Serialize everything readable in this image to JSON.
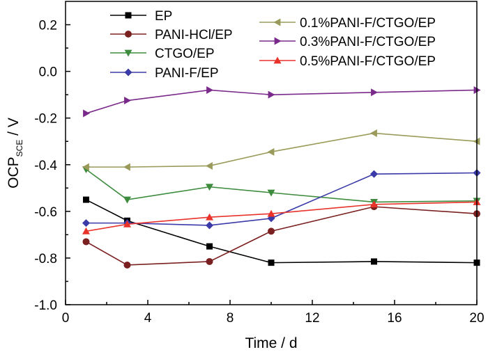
{
  "chart_data": {
    "type": "line",
    "xlabel": "Time / d",
    "ylabel_main": "OCP",
    "ylabel_sub": "SCE",
    "ylabel_unit": " / V",
    "xlim": [
      0,
      20
    ],
    "ylim": [
      -1.0,
      0.3
    ],
    "xticks": [
      0,
      4,
      8,
      12,
      16,
      20
    ],
    "yticks": [
      -1.0,
      -0.8,
      -0.6,
      -0.4,
      -0.2,
      0.0,
      0.2
    ],
    "ytick_labels": [
      "-1.0",
      "-0.8",
      "-0.6",
      "-0.4",
      "-0.2",
      "0.0",
      "0.2"
    ],
    "x": [
      1,
      3,
      7,
      10,
      15,
      20
    ],
    "grid": false,
    "legend_placement": "top, two columns",
    "series": [
      {
        "name": "EP",
        "color": "#000000",
        "marker": "square",
        "values": [
          -0.55,
          -0.64,
          -0.75,
          -0.82,
          -0.815,
          -0.82
        ]
      },
      {
        "name": "PANI-HCl/EP",
        "color": "#7b2020",
        "marker": "circle",
        "values": [
          -0.73,
          -0.83,
          -0.815,
          -0.685,
          -0.58,
          -0.61
        ]
      },
      {
        "name": "CTGO/EP",
        "color": "#3d8b3d",
        "marker": "triangle-down",
        "values": [
          -0.42,
          -0.55,
          -0.495,
          -0.52,
          -0.56,
          -0.555
        ]
      },
      {
        "name": "PANI-F/EP",
        "color": "#3a3aa8",
        "marker": "diamond",
        "values": [
          -0.65,
          -0.65,
          -0.66,
          -0.63,
          -0.44,
          -0.435
        ]
      },
      {
        "name": "0.1%PANI-F/CTGO/EP",
        "color": "#9a9a5a",
        "marker": "triangle-left",
        "values": [
          -0.41,
          -0.41,
          -0.405,
          -0.345,
          -0.265,
          -0.3
        ]
      },
      {
        "name": "0.3%PANI-F/CTGO/EP",
        "color": "#7a2a8a",
        "marker": "triangle-right",
        "values": [
          -0.18,
          -0.125,
          -0.08,
          -0.1,
          -0.09,
          -0.08
        ]
      },
      {
        "name": "0.5%PANI-F/CTGO/EP",
        "color": "#e8322a",
        "marker": "triangle-up",
        "values": [
          -0.685,
          -0.655,
          -0.625,
          -0.61,
          -0.57,
          -0.56
        ]
      }
    ]
  }
}
